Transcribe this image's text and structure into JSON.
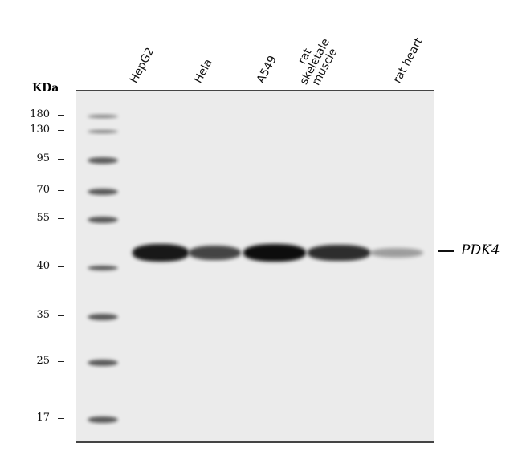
{
  "unit_label": "KDa",
  "lanes": [
    {
      "label": "HepG2",
      "intensity": 0.95
    },
    {
      "label": "Hela",
      "intensity": 0.75
    },
    {
      "label": "A549",
      "intensity": 1.0
    },
    {
      "label": "rat skeletale muscle",
      "intensity": 0.85
    },
    {
      "label": "rat heart",
      "intensity": 0.35
    }
  ],
  "markers": [
    "180",
    "130",
    "95",
    "70",
    "55",
    "40",
    "35",
    "25",
    "17"
  ],
  "band_label": "PDK4"
}
